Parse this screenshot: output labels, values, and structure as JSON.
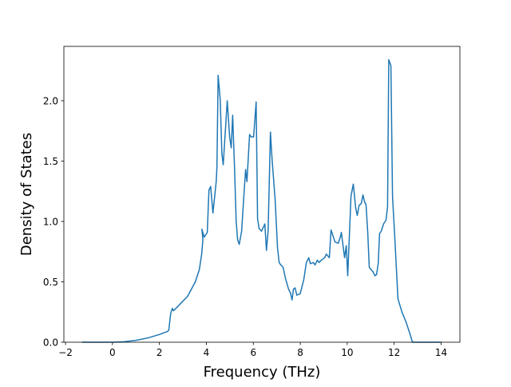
{
  "chart_data": {
    "type": "line",
    "title": "",
    "xlabel": "Frequency (THz)",
    "ylabel": "Density of States",
    "xlim": [
      -2.07,
      14.8
    ],
    "ylim": [
      0,
      2.45
    ],
    "xticks": [
      -2,
      0,
      2,
      4,
      6,
      8,
      10,
      12,
      14
    ],
    "xtick_labels": [
      "−2",
      "0",
      "2",
      "4",
      "6",
      "8",
      "10",
      "12",
      "14"
    ],
    "yticks": [
      0,
      0.5,
      1.0,
      1.5,
      2.0
    ],
    "ytick_labels": [
      "0.0",
      "0.5",
      "1.0",
      "1.5",
      "2.0"
    ],
    "grid": false,
    "line_color": "#1f77b4",
    "series": [
      {
        "x": [
          -1.3,
          0,
          0.5,
          1,
          1.5,
          2,
          2.35,
          2.4,
          2.48,
          2.55,
          2.6,
          2.85,
          3.2,
          3.53,
          3.7,
          3.8,
          3.85,
          3.81,
          3.91,
          4.04,
          4.11,
          4.18,
          4.28,
          4.42,
          4.45,
          4.5,
          4.59,
          4.66,
          4.72,
          4.89,
          4.99,
          5.06,
          5.12,
          5.2,
          5.27,
          5.33,
          5.4,
          5.5,
          5.61,
          5.67,
          5.73,
          5.84,
          5.91,
          6.01,
          6.12,
          6.18,
          6.25,
          6.35,
          6.49,
          6.56,
          6.63,
          6.73,
          6.8,
          6.93,
          7.03,
          7.1,
          7.17,
          7.27,
          7.37,
          7.5,
          7.58,
          7.65,
          7.71,
          7.78,
          7.85,
          7.99,
          8.05,
          8.15,
          8.26,
          8.36,
          8.43,
          8.56,
          8.63,
          8.73,
          8.8,
          8.9,
          9.04,
          9.11,
          9.24,
          9.31,
          9.48,
          9.62,
          9.72,
          9.75,
          9.89,
          9.96,
          10.02,
          10.16,
          10.26,
          10.36,
          10.43,
          10.5,
          10.6,
          10.67,
          10.74,
          10.8,
          10.87,
          10.94,
          11.11,
          11.18,
          11.25,
          11.32,
          11.38,
          11.45,
          11.55,
          11.65,
          11.72,
          11.77,
          11.86,
          11.93,
          12.03,
          12.16,
          12.33,
          12.5,
          12.67,
          12.78,
          14
        ],
        "y": [
          0,
          0,
          0.004,
          0.016,
          0.035,
          0.064,
          0.09,
          0.1,
          0.24,
          0.28,
          0.26,
          0.31,
          0.38,
          0.5,
          0.6,
          0.73,
          0.85,
          0.935,
          0.87,
          0.91,
          1.26,
          1.29,
          1.07,
          1.33,
          1.45,
          2.21,
          2.01,
          1.56,
          1.47,
          2.0,
          1.7,
          1.61,
          1.88,
          1.45,
          1.0,
          0.85,
          0.81,
          0.92,
          1.25,
          1.43,
          1.33,
          1.72,
          1.7,
          1.7,
          1.99,
          1.02,
          0.94,
          0.92,
          0.98,
          0.76,
          0.92,
          1.74,
          1.51,
          1.18,
          0.78,
          0.66,
          0.64,
          0.62,
          0.53,
          0.44,
          0.41,
          0.35,
          0.44,
          0.45,
          0.39,
          0.4,
          0.44,
          0.52,
          0.66,
          0.7,
          0.65,
          0.66,
          0.64,
          0.68,
          0.66,
          0.68,
          0.7,
          0.73,
          0.7,
          0.93,
          0.83,
          0.82,
          0.88,
          0.91,
          0.7,
          0.8,
          0.55,
          1.21,
          1.31,
          1.11,
          1.05,
          1.13,
          1.15,
          1.22,
          1.16,
          1.14,
          0.92,
          0.62,
          0.58,
          0.55,
          0.56,
          0.65,
          0.9,
          0.92,
          0.98,
          1.01,
          1.12,
          2.34,
          2.29,
          1.21,
          0.85,
          0.36,
          0.25,
          0.17,
          0.07,
          0,
          0
        ]
      }
    ]
  }
}
